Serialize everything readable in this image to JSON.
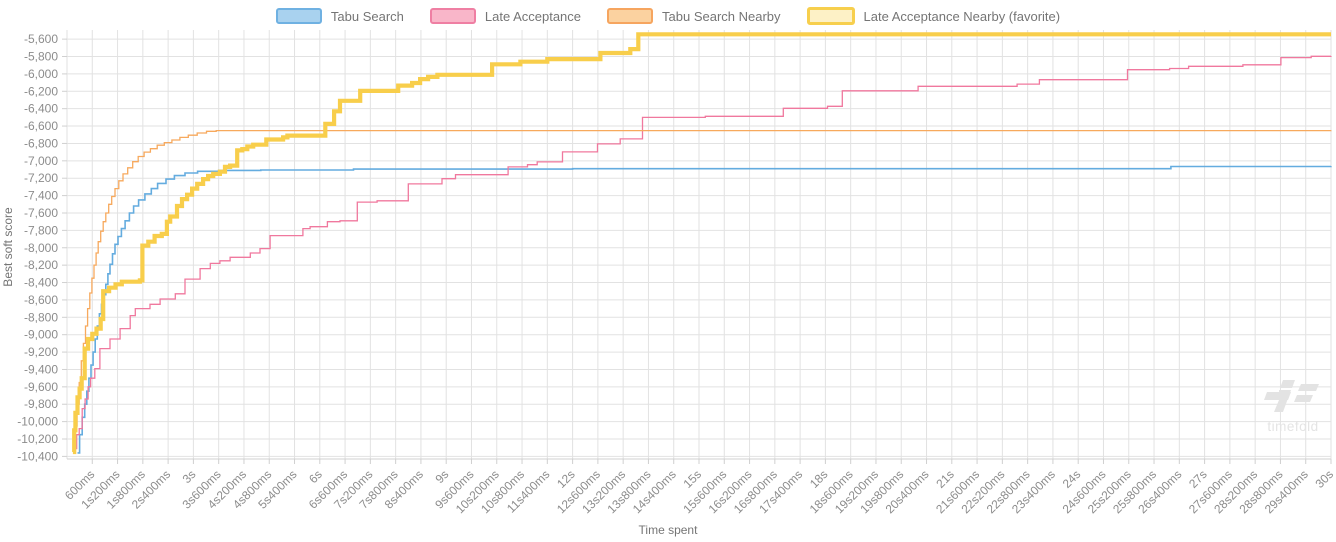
{
  "legend": [
    {
      "label": "Tabu Search",
      "fill": "#a9d2ef",
      "stroke": "#6fb1e2",
      "thick": false
    },
    {
      "label": "Late Acceptance",
      "fill": "#f9b6c9",
      "stroke": "#ef7fa3",
      "thick": false
    },
    {
      "label": "Tabu Search Nearby",
      "fill": "#fbd2a0",
      "stroke": "#f6a55f",
      "thick": false
    },
    {
      "label": "Late Acceptance Nearby (favorite)",
      "fill": "#fdf1c6",
      "stroke": "#f7cf4d",
      "thick": true
    }
  ],
  "axes": {
    "x_title": "Time spent",
    "y_title": "Best soft score",
    "tick_color": "#8c8c8c",
    "grid_color": "#e2e2e2",
    "axis_line_color": "#d0d0d0"
  },
  "watermark": {
    "text": "timefold",
    "color": "#e4e4e4"
  },
  "chart_data": {
    "type": "line",
    "subtype": "step-after",
    "title": "",
    "xlabel": "Time spent",
    "ylabel": "Best soft score",
    "x_unit": "ms",
    "xlim": [
      0,
      30000
    ],
    "ylim": [
      -10430,
      -5495
    ],
    "grid": true,
    "legend_position": "top-center",
    "x_ticks": [
      {
        "value": 600,
        "label": "600ms"
      },
      {
        "value": 1200,
        "label": "1s200ms"
      },
      {
        "value": 1800,
        "label": "1s800ms"
      },
      {
        "value": 2400,
        "label": "2s400ms"
      },
      {
        "value": 3000,
        "label": "3s"
      },
      {
        "value": 3600,
        "label": "3s600ms"
      },
      {
        "value": 4200,
        "label": "4s200ms"
      },
      {
        "value": 4800,
        "label": "4s800ms"
      },
      {
        "value": 5400,
        "label": "5s400ms"
      },
      {
        "value": 6000,
        "label": "6s"
      },
      {
        "value": 6600,
        "label": "6s600ms"
      },
      {
        "value": 7200,
        "label": "7s200ms"
      },
      {
        "value": 7800,
        "label": "7s800ms"
      },
      {
        "value": 8400,
        "label": "8s400ms"
      },
      {
        "value": 9000,
        "label": "9s"
      },
      {
        "value": 9600,
        "label": "9s600ms"
      },
      {
        "value": 10200,
        "label": "10s200ms"
      },
      {
        "value": 10800,
        "label": "10s800ms"
      },
      {
        "value": 11400,
        "label": "11s400ms"
      },
      {
        "value": 12000,
        "label": "12s"
      },
      {
        "value": 12600,
        "label": "12s600ms"
      },
      {
        "value": 13200,
        "label": "13s200ms"
      },
      {
        "value": 13800,
        "label": "13s800ms"
      },
      {
        "value": 14400,
        "label": "14s400ms"
      },
      {
        "value": 15000,
        "label": "15s"
      },
      {
        "value": 15600,
        "label": "15s600ms"
      },
      {
        "value": 16200,
        "label": "16s200ms"
      },
      {
        "value": 16800,
        "label": "16s800ms"
      },
      {
        "value": 17400,
        "label": "17s400ms"
      },
      {
        "value": 18000,
        "label": "18s"
      },
      {
        "value": 18600,
        "label": "18s600ms"
      },
      {
        "value": 19200,
        "label": "19s200ms"
      },
      {
        "value": 19800,
        "label": "19s800ms"
      },
      {
        "value": 20400,
        "label": "20s400ms"
      },
      {
        "value": 21000,
        "label": "21s"
      },
      {
        "value": 21600,
        "label": "21s600ms"
      },
      {
        "value": 22200,
        "label": "22s200ms"
      },
      {
        "value": 22800,
        "label": "22s800ms"
      },
      {
        "value": 23400,
        "label": "23s400ms"
      },
      {
        "value": 24000,
        "label": "24s"
      },
      {
        "value": 24600,
        "label": "24s600ms"
      },
      {
        "value": 25200,
        "label": "25s200ms"
      },
      {
        "value": 25800,
        "label": "25s800ms"
      },
      {
        "value": 26400,
        "label": "26s400ms"
      },
      {
        "value": 27000,
        "label": "27s"
      },
      {
        "value": 27600,
        "label": "27s600ms"
      },
      {
        "value": 28200,
        "label": "28s200ms"
      },
      {
        "value": 28800,
        "label": "28s800ms"
      },
      {
        "value": 29400,
        "label": "29s400ms"
      },
      {
        "value": 30000,
        "label": "30s"
      }
    ],
    "y_ticks": [
      {
        "value": -5600,
        "label": "-5,600"
      },
      {
        "value": -5800,
        "label": "-5,800"
      },
      {
        "value": -6000,
        "label": "-6,000"
      },
      {
        "value": -6200,
        "label": "-6,200"
      },
      {
        "value": -6400,
        "label": "-6,400"
      },
      {
        "value": -6600,
        "label": "-6,600"
      },
      {
        "value": -6800,
        "label": "-6,800"
      },
      {
        "value": -7000,
        "label": "-7,000"
      },
      {
        "value": -7200,
        "label": "-7,200"
      },
      {
        "value": -7400,
        "label": "-7,400"
      },
      {
        "value": -7600,
        "label": "-7,600"
      },
      {
        "value": -7800,
        "label": "-7,800"
      },
      {
        "value": -8000,
        "label": "-8,000"
      },
      {
        "value": -8200,
        "label": "-8,200"
      },
      {
        "value": -8400,
        "label": "-8,400"
      },
      {
        "value": -8600,
        "label": "-8,600"
      },
      {
        "value": -8800,
        "label": "-8,800"
      },
      {
        "value": -9000,
        "label": "-9,000"
      },
      {
        "value": -9200,
        "label": "-9,200"
      },
      {
        "value": -9400,
        "label": "-9,400"
      },
      {
        "value": -9600,
        "label": "-9,600"
      },
      {
        "value": -9800,
        "label": "-9,800"
      },
      {
        "value": -10000,
        "label": "-10,000"
      },
      {
        "value": -10200,
        "label": "-10,200"
      },
      {
        "value": -10400,
        "label": "-10,400"
      }
    ],
    "series": [
      {
        "name": "Tabu Search",
        "slug": "tabu-search",
        "color": "#64acdf",
        "width": 1.6,
        "points": [
          [
            250,
            -10360
          ],
          [
            300,
            -10150
          ],
          [
            360,
            -9950
          ],
          [
            420,
            -9800
          ],
          [
            470,
            -9650
          ],
          [
            520,
            -9500
          ],
          [
            570,
            -9350
          ],
          [
            620,
            -9200
          ],
          [
            670,
            -9050
          ],
          [
            720,
            -8900
          ],
          [
            770,
            -8760
          ],
          [
            820,
            -8650
          ],
          [
            870,
            -8540
          ],
          [
            920,
            -8420
          ],
          [
            970,
            -8300
          ],
          [
            1020,
            -8190
          ],
          [
            1080,
            -8070
          ],
          [
            1140,
            -7960
          ],
          [
            1210,
            -7870
          ],
          [
            1290,
            -7780
          ],
          [
            1380,
            -7690
          ],
          [
            1480,
            -7600
          ],
          [
            1580,
            -7520
          ],
          [
            1700,
            -7450
          ],
          [
            1850,
            -7380
          ],
          [
            2000,
            -7320
          ],
          [
            2150,
            -7260
          ],
          [
            2350,
            -7210
          ],
          [
            2550,
            -7170
          ],
          [
            2800,
            -7140
          ],
          [
            3100,
            -7120
          ],
          [
            3600,
            -7110
          ],
          [
            4600,
            -7105
          ],
          [
            6800,
            -7095
          ],
          [
            12000,
            -7090
          ],
          [
            26200,
            -7065
          ],
          [
            30000,
            -7063
          ]
        ]
      },
      {
        "name": "Late Acceptance",
        "slug": "late-acceptance",
        "color": "#f0789e",
        "width": 1.3,
        "points": [
          [
            170,
            -10310
          ],
          [
            230,
            -10150
          ],
          [
            290,
            -10080
          ],
          [
            360,
            -9850
          ],
          [
            430,
            -9740
          ],
          [
            500,
            -9600
          ],
          [
            560,
            -9500
          ],
          [
            660,
            -9390
          ],
          [
            780,
            -9160
          ],
          [
            1020,
            -9050
          ],
          [
            1260,
            -8930
          ],
          [
            1500,
            -8780
          ],
          [
            1620,
            -8700
          ],
          [
            1970,
            -8650
          ],
          [
            2210,
            -8590
          ],
          [
            2570,
            -8530
          ],
          [
            2800,
            -8360
          ],
          [
            3160,
            -8240
          ],
          [
            3400,
            -8180
          ],
          [
            3630,
            -8150
          ],
          [
            3870,
            -8110
          ],
          [
            4350,
            -8060
          ],
          [
            4580,
            -8010
          ],
          [
            4820,
            -7860
          ],
          [
            5600,
            -7780
          ],
          [
            5770,
            -7758
          ],
          [
            6180,
            -7700
          ],
          [
            6480,
            -7690
          ],
          [
            6890,
            -7475
          ],
          [
            7360,
            -7460
          ],
          [
            8100,
            -7265
          ],
          [
            8900,
            -7205
          ],
          [
            9220,
            -7160
          ],
          [
            10470,
            -7070
          ],
          [
            10930,
            -7045
          ],
          [
            11160,
            -7012
          ],
          [
            11760,
            -6897
          ],
          [
            12590,
            -6805
          ],
          [
            13130,
            -6748
          ],
          [
            13660,
            -6500
          ],
          [
            15150,
            -6488
          ],
          [
            17000,
            -6396
          ],
          [
            18050,
            -6373
          ],
          [
            18400,
            -6194
          ],
          [
            20200,
            -6143
          ],
          [
            22550,
            -6117
          ],
          [
            23080,
            -6067
          ],
          [
            25170,
            -5952
          ],
          [
            26170,
            -5938
          ],
          [
            26620,
            -5913
          ],
          [
            27910,
            -5895
          ],
          [
            28810,
            -5812
          ],
          [
            29530,
            -5798
          ],
          [
            30000,
            -5795
          ]
        ]
      },
      {
        "name": "Tabu Search Nearby",
        "slug": "tabu-search-nearby",
        "color": "#f7a95d",
        "width": 1.3,
        "points": [
          [
            140,
            -10340
          ],
          [
            190,
            -10050
          ],
          [
            240,
            -9800
          ],
          [
            290,
            -9550
          ],
          [
            340,
            -9300
          ],
          [
            390,
            -9100
          ],
          [
            440,
            -8900
          ],
          [
            490,
            -8700
          ],
          [
            540,
            -8520
          ],
          [
            590,
            -8350
          ],
          [
            640,
            -8200
          ],
          [
            690,
            -8060
          ],
          [
            740,
            -7930
          ],
          [
            800,
            -7810
          ],
          [
            860,
            -7700
          ],
          [
            920,
            -7600
          ],
          [
            990,
            -7500
          ],
          [
            1060,
            -7410
          ],
          [
            1140,
            -7320
          ],
          [
            1230,
            -7230
          ],
          [
            1330,
            -7150
          ],
          [
            1440,
            -7080
          ],
          [
            1560,
            -7010
          ],
          [
            1690,
            -6950
          ],
          [
            1830,
            -6900
          ],
          [
            1980,
            -6860
          ],
          [
            2140,
            -6820
          ],
          [
            2310,
            -6790
          ],
          [
            2490,
            -6760
          ],
          [
            2680,
            -6730
          ],
          [
            2880,
            -6705
          ],
          [
            3090,
            -6680
          ],
          [
            3310,
            -6660
          ],
          [
            3540,
            -6652
          ],
          [
            30000,
            -6650
          ]
        ]
      },
      {
        "name": "Late Acceptance Nearby (favorite)",
        "slug": "late-acceptance-nearby-favorite",
        "color": "#f8ce4b",
        "width": 4.2,
        "points": [
          [
            140,
            -10350
          ],
          [
            170,
            -10100
          ],
          [
            200,
            -9900
          ],
          [
            250,
            -9720
          ],
          [
            300,
            -9620
          ],
          [
            350,
            -9500
          ],
          [
            420,
            -9160
          ],
          [
            500,
            -9050
          ],
          [
            600,
            -8990
          ],
          [
            700,
            -8930
          ],
          [
            800,
            -8820
          ],
          [
            860,
            -8500
          ],
          [
            1000,
            -8460
          ],
          [
            1150,
            -8420
          ],
          [
            1300,
            -8390
          ],
          [
            1730,
            -8375
          ],
          [
            1790,
            -7975
          ],
          [
            1930,
            -7930
          ],
          [
            2080,
            -7865
          ],
          [
            2250,
            -7840
          ],
          [
            2370,
            -7700
          ],
          [
            2450,
            -7640
          ],
          [
            2610,
            -7520
          ],
          [
            2730,
            -7440
          ],
          [
            2850,
            -7390
          ],
          [
            2970,
            -7320
          ],
          [
            3090,
            -7265
          ],
          [
            3230,
            -7210
          ],
          [
            3350,
            -7175
          ],
          [
            3470,
            -7150
          ],
          [
            3630,
            -7125
          ],
          [
            3750,
            -7070
          ],
          [
            3870,
            -7055
          ],
          [
            4040,
            -6880
          ],
          [
            4160,
            -6865
          ],
          [
            4280,
            -6835
          ],
          [
            4420,
            -6815
          ],
          [
            4730,
            -6755
          ],
          [
            5130,
            -6730
          ],
          [
            5230,
            -6710
          ],
          [
            6130,
            -6575
          ],
          [
            6340,
            -6430
          ],
          [
            6480,
            -6310
          ],
          [
            6960,
            -6195
          ],
          [
            7860,
            -6135
          ],
          [
            8190,
            -6105
          ],
          [
            8380,
            -6060
          ],
          [
            8570,
            -6035
          ],
          [
            8790,
            -6010
          ],
          [
            10090,
            -5890
          ],
          [
            10760,
            -5860
          ],
          [
            11400,
            -5830
          ],
          [
            12660,
            -5760
          ],
          [
            13370,
            -5715
          ],
          [
            13560,
            -5545
          ],
          [
            30000,
            -5545
          ]
        ]
      }
    ]
  }
}
